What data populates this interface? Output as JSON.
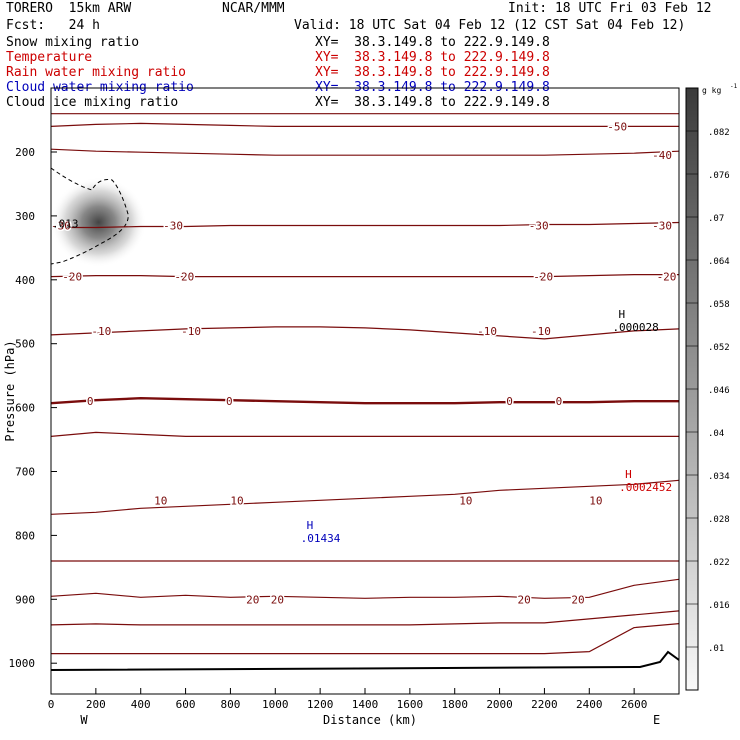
{
  "header": {
    "model": "TORERO  15km ARW",
    "org": "NCAR/MMM",
    "init": "Init: 18 UTC Fri 03 Feb 12",
    "fcst": "Fcst:   24 h",
    "valid": "Valid: 18 UTC Sat 04 Feb 12 (12 CST Sat 04 Feb 12)"
  },
  "fields": [
    {
      "label": "Snow mixing ratio",
      "xy": "XY=  38.3.149.8 to 222.9.149.8",
      "color": "#000000"
    },
    {
      "label": "Temperature",
      "xy": "XY=  38.3.149.8 to 222.9.149.8",
      "color": "#cc0000"
    },
    {
      "label": "Rain water mixing ratio",
      "xy": "XY=  38.3.149.8 to 222.9.149.8",
      "color": "#cc0000"
    },
    {
      "label": "Cloud water mixing ratio",
      "xy": "XY=  38.3.149.8 to 222.9.149.8",
      "color": "#0000bb"
    },
    {
      "label": "Cloud ice mixing ratio",
      "xy": "XY=  38.3.149.8 to 222.9.149.8",
      "color": "#000000"
    }
  ],
  "chart_data": {
    "type": "cross-section",
    "xlabel": "Distance (km)",
    "ylabel": "Pressure (hPa)",
    "xlim": [
      0,
      2800
    ],
    "ylim": [
      1050,
      100
    ],
    "xticks": [
      "0",
      "200",
      "400",
      "600",
      "800",
      "1000",
      "1200",
      "1400",
      "1600",
      "1800",
      "2000",
      "2200",
      "2400",
      "2600"
    ],
    "yticks": [
      "200",
      "300",
      "400",
      "500",
      "600",
      "700",
      "800",
      "900",
      "1000"
    ],
    "x_end_labels": {
      "left": "W",
      "right": "E"
    },
    "colorbar": {
      "unit": "g kg",
      "unit_exp": "-1",
      "levels": [
        ".01",
        ".016",
        ".022",
        ".028",
        ".034",
        ".04",
        ".046",
        ".052",
        ".058",
        ".064",
        ".07",
        ".076",
        ".082"
      ]
    },
    "temperature_isotherms": [
      {
        "value": -50,
        "p": 140
      },
      {
        "value": -50,
        "p": 160,
        "label": "-50",
        "label_x": 2480
      },
      {
        "value": -40,
        "p": 205,
        "label": "-40",
        "label_x": 2680
      },
      {
        "value": -30,
        "p": 315,
        "label": "-30",
        "label_x": 2130
      },
      {
        "value": -20,
        "p": 395,
        "label": "-20",
        "label_x": 2150
      },
      {
        "value": -10,
        "p": 480,
        "label": "-10",
        "label_x": 2140
      },
      {
        "value": 0,
        "p": 590,
        "label": "0",
        "label_x": 880
      },
      {
        "value": 10,
        "p": 745,
        "label": "10",
        "label_x": 1820
      },
      {
        "value": 20,
        "p": 900,
        "label": "20",
        "label_x": 840
      }
    ],
    "contour_labels": [
      "-50",
      "-40",
      "-30",
      "-30",
      "-30",
      "-30",
      "-20",
      "-20",
      "-20",
      "-20",
      "-10",
      "-10",
      "-10",
      "-10",
      "0",
      "0",
      "0",
      "0",
      "10",
      "10",
      "10",
      "10",
      "20",
      "20",
      "20",
      "20"
    ],
    "annotations": [
      {
        "text": "H",
        "value": ".000028",
        "color": "#000000",
        "x": 2530,
        "p": 460
      },
      {
        "text": "H",
        "value": ".0002452",
        "color": "#cc0000",
        "x": 2560,
        "p": 710
      },
      {
        "text": "H",
        "value": ".01434",
        "color": "#0000bb",
        "x": 1140,
        "p": 790
      }
    ],
    "edge_value": ".013",
    "snow_max_center": {
      "x": 230,
      "p": 310
    }
  }
}
